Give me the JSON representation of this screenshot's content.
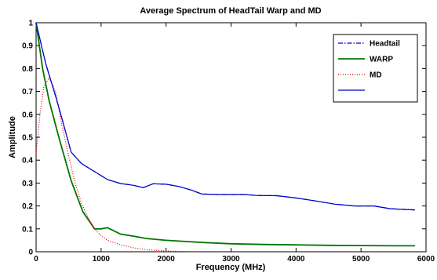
{
  "chart_data": {
    "type": "line",
    "title": "Average Spectrum of HeadTail Warp and MD",
    "xlabel": "Frequency (MHz)",
    "ylabel": "Amplitude",
    "xlim": [
      0,
      6000
    ],
    "ylim": [
      0,
      1
    ],
    "xticks": [
      "0",
      "1000",
      "2000",
      "3000",
      "4000",
      "5000",
      "6000"
    ],
    "yticks": [
      "0",
      "0.1",
      "0.2",
      "0.3",
      "0.4",
      "0.5",
      "0.6",
      "0.7",
      "0.8",
      "0.9",
      "1"
    ],
    "grid": false,
    "legend_position": "top-right",
    "series": [
      {
        "name": "Headtail",
        "color": "#0000cc",
        "style": "dashdot",
        "points": [
          [
            0,
            1.0
          ],
          [
            150,
            0.82
          ],
          [
            300,
            0.68
          ],
          [
            400,
            0.58
          ],
          [
            540,
            0.435
          ],
          [
            700,
            0.385
          ],
          [
            900,
            0.35
          ],
          [
            1100,
            0.315
          ],
          [
            1300,
            0.298
          ],
          [
            1500,
            0.29
          ],
          [
            1650,
            0.28
          ],
          [
            1800,
            0.297
          ],
          [
            2000,
            0.295
          ],
          [
            2200,
            0.285
          ],
          [
            2400,
            0.268
          ],
          [
            2550,
            0.252
          ],
          [
            2800,
            0.25
          ],
          [
            3000,
            0.25
          ],
          [
            3200,
            0.25
          ],
          [
            3400,
            0.246
          ],
          [
            3700,
            0.245
          ],
          [
            4000,
            0.235
          ],
          [
            4300,
            0.222
          ],
          [
            4600,
            0.208
          ],
          [
            4900,
            0.2
          ],
          [
            5200,
            0.2
          ],
          [
            5450,
            0.188
          ],
          [
            5650,
            0.185
          ],
          [
            5830,
            0.183
          ]
        ]
      },
      {
        "name": "WARP",
        "color": "#007700",
        "style": "solid",
        "points": [
          [
            0,
            1.0
          ],
          [
            100,
            0.8
          ],
          [
            200,
            0.66
          ],
          [
            350,
            0.5
          ],
          [
            540,
            0.31
          ],
          [
            720,
            0.175
          ],
          [
            900,
            0.1
          ],
          [
            1000,
            0.1
          ],
          [
            1100,
            0.105
          ],
          [
            1300,
            0.077
          ],
          [
            1500,
            0.068
          ],
          [
            1700,
            0.058
          ],
          [
            2000,
            0.05
          ],
          [
            2300,
            0.045
          ],
          [
            2600,
            0.04
          ],
          [
            3000,
            0.035
          ],
          [
            3500,
            0.032
          ],
          [
            4000,
            0.03
          ],
          [
            4500,
            0.028
          ],
          [
            5000,
            0.027
          ],
          [
            5500,
            0.026
          ],
          [
            5830,
            0.026
          ]
        ]
      },
      {
        "name": "MD",
        "color": "#dd0000",
        "style": "dotted",
        "points": [
          [
            0,
            0.43
          ],
          [
            60,
            0.6
          ],
          [
            120,
            0.72
          ],
          [
            200,
            0.76
          ],
          [
            300,
            0.7
          ],
          [
            400,
            0.55
          ],
          [
            500,
            0.42
          ],
          [
            600,
            0.3
          ],
          [
            700,
            0.21
          ],
          [
            800,
            0.15
          ],
          [
            900,
            0.1
          ],
          [
            1000,
            0.07
          ],
          [
            1100,
            0.05
          ],
          [
            1300,
            0.03
          ],
          [
            1500,
            0.017
          ],
          [
            1700,
            0.009
          ],
          [
            1900,
            0.005
          ],
          [
            2100,
            0.002
          ],
          [
            2500,
            0.0
          ]
        ]
      },
      {
        "name": "",
        "color": "#0000cc",
        "style": "solid",
        "points": [
          [
            0,
            1.0
          ],
          [
            150,
            0.82
          ],
          [
            300,
            0.68
          ],
          [
            400,
            0.58
          ],
          [
            540,
            0.435
          ],
          [
            700,
            0.385
          ],
          [
            900,
            0.35
          ],
          [
            1100,
            0.315
          ],
          [
            1300,
            0.298
          ],
          [
            1500,
            0.29
          ],
          [
            1650,
            0.28
          ],
          [
            1800,
            0.297
          ],
          [
            2000,
            0.295
          ],
          [
            2200,
            0.285
          ],
          [
            2400,
            0.268
          ],
          [
            2550,
            0.252
          ],
          [
            2800,
            0.25
          ],
          [
            3000,
            0.25
          ],
          [
            3200,
            0.25
          ],
          [
            3400,
            0.246
          ],
          [
            3700,
            0.245
          ],
          [
            4000,
            0.235
          ],
          [
            4300,
            0.222
          ],
          [
            4600,
            0.208
          ],
          [
            4900,
            0.2
          ],
          [
            5200,
            0.2
          ],
          [
            5450,
            0.188
          ],
          [
            5650,
            0.185
          ],
          [
            5830,
            0.183
          ]
        ]
      }
    ]
  }
}
